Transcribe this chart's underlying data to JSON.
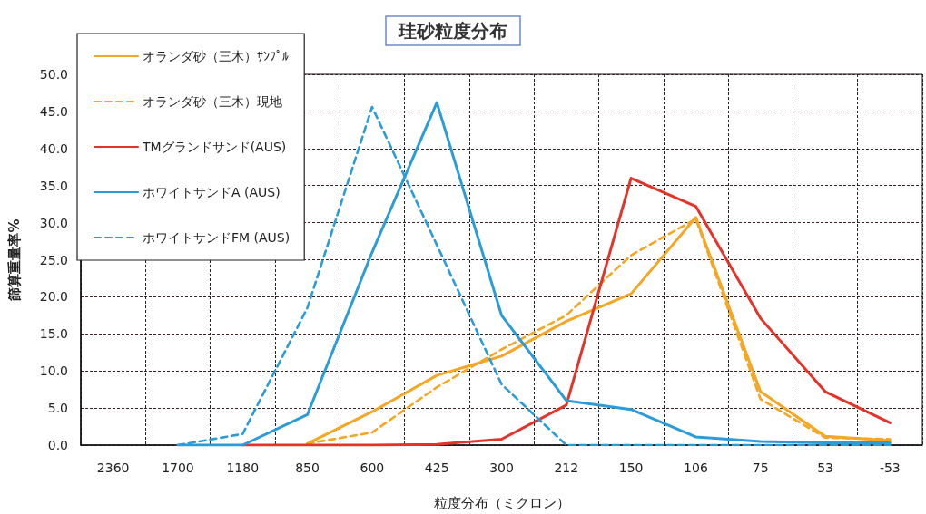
{
  "chart_data": {
    "type": "line",
    "title": "珪砂粒度分布",
    "xlabel": "粒度分布（ミクロン）",
    "ylabel": "篩算重量率%",
    "categories": [
      "2360",
      "1700",
      "1180",
      "850",
      "600",
      "425",
      "300",
      "212",
      "150",
      "106",
      "75",
      "53",
      "-53"
    ],
    "series": [
      {
        "name": "オランダ砂（三木）ｻﾝﾌﾟﾙ",
        "color": "#f5a623",
        "line_style": "solid",
        "values": [
          null,
          null,
          null,
          0.2,
          4.5,
          9.4,
          12.0,
          16.7,
          20.4,
          30.7,
          7.2,
          1.2,
          0.6
        ]
      },
      {
        "name": "オランダ砂（三木）現地",
        "color": "#f5a623",
        "line_style": "dashed",
        "values": [
          null,
          null,
          null,
          0.2,
          1.7,
          7.8,
          12.9,
          17.5,
          25.6,
          30.5,
          6.2,
          1.0,
          0.8
        ]
      },
      {
        "name": "TMグランドサンド(AUS)",
        "color": "#e63329",
        "line_style": "solid",
        "values": [
          null,
          null,
          0,
          0,
          0,
          0.1,
          0.8,
          5.4,
          36.0,
          32.2,
          17.1,
          7.2,
          3.0
        ]
      },
      {
        "name": "ホワイトサンドA (AUS)",
        "color": "#2b9cd8",
        "line_style": "solid",
        "values": [
          null,
          0,
          0,
          4.1,
          26.0,
          46.2,
          17.5,
          6.0,
          4.8,
          1.1,
          0.5,
          0.3,
          0.3
        ]
      },
      {
        "name": "ホワイトサンドFM (AUS)",
        "color": "#2b9cd8",
        "line_style": "dashed",
        "values": [
          null,
          0,
          1.5,
          18.5,
          45.6,
          27.0,
          8.2,
          0,
          0,
          0,
          0,
          0,
          0
        ]
      }
    ],
    "ylim": [
      0,
      50
    ],
    "yticks": [
      {
        "value": 0,
        "label": "0.0"
      },
      {
        "value": 5,
        "label": "5.0"
      },
      {
        "value": 10,
        "label": "10.0"
      },
      {
        "value": 15,
        "label": "15.0"
      },
      {
        "value": 20,
        "label": "20.0"
      },
      {
        "value": 25,
        "label": "25.0"
      },
      {
        "value": 30,
        "label": "30.0"
      },
      {
        "value": 35,
        "label": "35.0"
      },
      {
        "value": 40,
        "label": "40.0"
      },
      {
        "value": 45,
        "label": "45.0"
      },
      {
        "value": 50,
        "label": "50.0"
      }
    ],
    "grid": true,
    "legend": "top left",
    "marker": "none"
  }
}
